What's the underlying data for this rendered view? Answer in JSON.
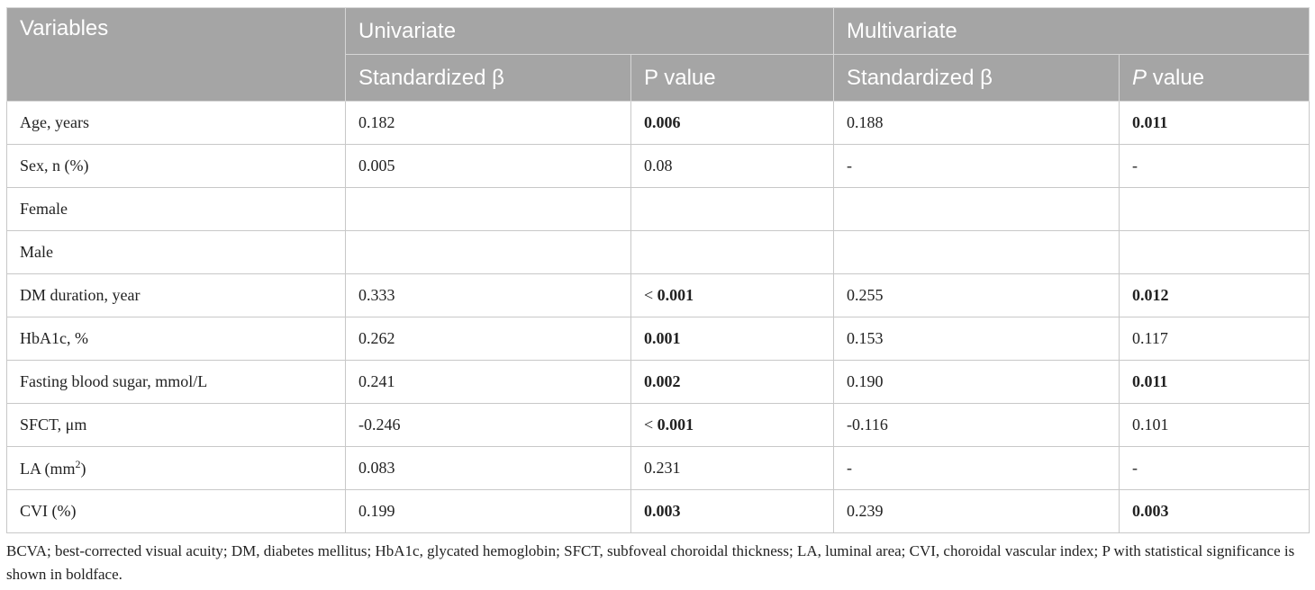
{
  "header": {
    "variables": "Variables",
    "univariate": "Univariate",
    "multivariate": "Multivariate",
    "std_beta": "Standardized β",
    "p_value_label": "P value",
    "p_value_italic_p": "P",
    "p_value_suffix": " value"
  },
  "rows": [
    {
      "label": "Age, years",
      "u_beta": "0.182",
      "u_p": "0.006",
      "m_beta": "0.188",
      "m_p": "0.011"
    },
    {
      "label": "Sex, n (%)",
      "u_beta": "0.005",
      "u_p": "0.08",
      "m_beta": "-",
      "m_p": "-"
    },
    {
      "label": "Female",
      "u_beta": "",
      "u_p": "",
      "m_beta": "",
      "m_p": ""
    },
    {
      "label": "Male",
      "u_beta": "",
      "u_p": "",
      "m_beta": "",
      "m_p": ""
    },
    {
      "label": "DM duration, year",
      "u_beta": "0.333",
      "u_p_prefix": "< ",
      "u_p": "0.001",
      "m_beta": "0.255",
      "m_p": "0.012"
    },
    {
      "label": "HbA1c, %",
      "u_beta": "0.262",
      "u_p": "0.001",
      "m_beta": "0.153",
      "m_p": "0.117"
    },
    {
      "label": "Fasting blood sugar, mmol/L",
      "u_beta": "0.241",
      "u_p": "0.002",
      "m_beta": "0.190",
      "m_p": "0.011"
    },
    {
      "label": "SFCT, μm",
      "u_beta": "-0.246",
      "u_p_prefix": "< ",
      "u_p": "0.001",
      "m_beta": "-0.116",
      "m_p": "0.101"
    },
    {
      "label_main": "LA (mm",
      "label_sup": "2",
      "label_end": ")",
      "u_beta": "0.083",
      "u_p": "0.231",
      "m_beta": "-",
      "m_p": "-"
    },
    {
      "label": "CVI (%)",
      "u_beta": "0.199",
      "u_p": "0.003",
      "m_beta": "0.239",
      "m_p": "0.003"
    }
  ],
  "footnote": "BCVA; best-corrected visual acuity; DM, diabetes mellitus; HbA1c, glycated hemoglobin; SFCT, subfoveal choroidal thickness; LA, luminal area; CVI, choroidal vascular index; P with statistical significance is shown in boldface."
}
